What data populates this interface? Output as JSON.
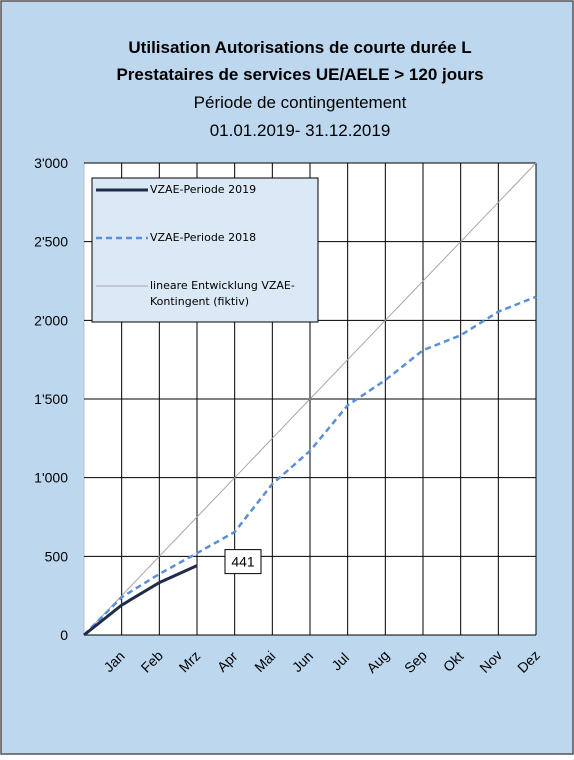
{
  "chart_data": {
    "type": "line",
    "title": [
      "Utilisation Autorisations de courte durée L",
      "Prestataires de services UE/AELE > 120 jours"
    ],
    "subtitle": [
      "Période de contingentement",
      "01.01.2019- 31.12.2019"
    ],
    "categories": [
      null,
      "Jan",
      "Feb",
      "Mrz",
      "Apr",
      "Mai",
      "Jun",
      "Jul",
      "Aug",
      "Sep",
      "Okt",
      "Nov",
      "Dez"
    ],
    "series": [
      {
        "name": "VZAE-Periode 2019",
        "color": "#1f2d4a",
        "line_style": "solid",
        "width": 3,
        "values": [
          0,
          190,
          333,
          441,
          null,
          null,
          null,
          null,
          null,
          null,
          null,
          null,
          null
        ],
        "labeled_point": 3
      },
      {
        "name": "VZAE-Periode 2018",
        "color": "#5b8fd6",
        "line_style": "dashed",
        "width": 2.5,
        "values": [
          0,
          240,
          388,
          520,
          655,
          960,
          1170,
          1460,
          1620,
          1810,
          1905,
          2055,
          2150
        ]
      },
      {
        "name": "lineare Entwicklung VZAE-Kontingent (fiktiv)",
        "color": "#a6a6a6",
        "line_style": "solid",
        "width": 1,
        "values": [
          0,
          250,
          500,
          750,
          1000,
          1250,
          1500,
          1750,
          2000,
          2250,
          2500,
          2750,
          3000
        ]
      }
    ],
    "ylim": [
      0,
      3000
    ],
    "yticks": [
      0,
      500,
      {
        "value": 1000,
        "label": "1'000"
      },
      {
        "value": 1500,
        "label": "1'500"
      },
      {
        "value": 2000,
        "label": "2'000"
      },
      {
        "value": 2500,
        "label": "2'500"
      },
      {
        "value": 3000,
        "label": "3'000"
      }
    ],
    "grid": true,
    "legend": "top-left"
  }
}
